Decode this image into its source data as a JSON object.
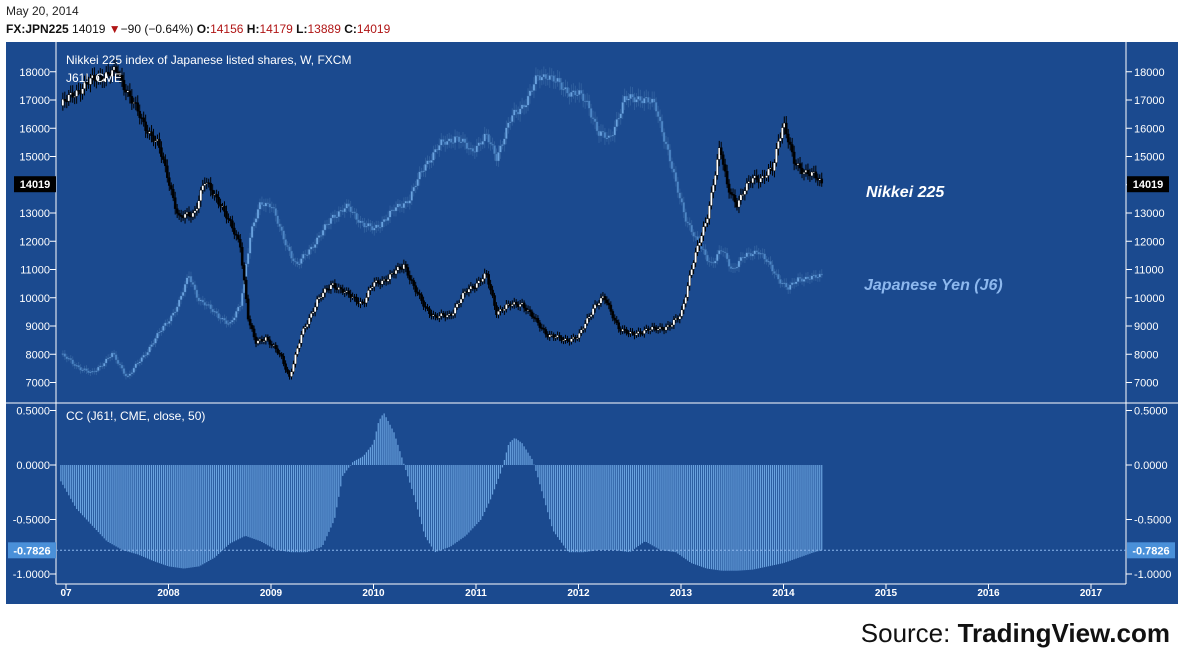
{
  "header": {
    "date": "May 20, 2014",
    "symbol": "FX:JPN225",
    "last": "14019",
    "change": "−90 (−0.64%)",
    "open_label": "O:",
    "open": "14156",
    "high_label": "H:",
    "high": "14179",
    "low_label": "L:",
    "low": "13889",
    "close_label": "C:",
    "close": "14019"
  },
  "main_pane": {
    "title": "Nikkei 225 index of Japanese listed shares, W, FXCM",
    "subtitle": "J61!, CME",
    "price_tag": "14019",
    "label_nikkei": "Nikkei 225",
    "label_yen": "Japanese Yen (J6)"
  },
  "indicator_pane": {
    "title": "CC (J61!, CME, close, 50)",
    "value_tag": "-0.7826"
  },
  "source": {
    "prefix": "Source: ",
    "brand": "TradingView.com"
  },
  "colors": {
    "background": "#1b4a8f",
    "nikkei_up": "#ffffff",
    "nikkei_down": "#000000",
    "yen": "#6aa3e0",
    "correlation": "#6aa3e0",
    "down_arrow": "#b01515"
  },
  "chart_data": [
    {
      "type": "candlestick",
      "title": "Nikkei 225 index of Japanese listed shares, W, FXCM",
      "x_ticks": [
        "07",
        "2008",
        "2009",
        "2010",
        "2011",
        "2012",
        "2013",
        "2014",
        "2015",
        "2016",
        "2017"
      ],
      "y_ticks": [
        7000,
        8000,
        9000,
        10000,
        11000,
        12000,
        13000,
        14000,
        15000,
        16000,
        17000,
        18000
      ],
      "ylim": [
        6600,
        18500
      ],
      "last_value": 14019,
      "series": [
        {
          "name": "Nikkei 225",
          "x": [
            2006.95,
            2007.1,
            2007.3,
            2007.5,
            2007.6,
            2007.75,
            2007.9,
            2008.0,
            2008.1,
            2008.25,
            2008.35,
            2008.5,
            2008.6,
            2008.7,
            2008.78,
            2008.85,
            2008.95,
            2009.1,
            2009.18,
            2009.3,
            2009.45,
            2009.6,
            2009.75,
            2009.9,
            2010.0,
            2010.15,
            2010.3,
            2010.4,
            2010.5,
            2010.6,
            2010.75,
            2010.9,
            2011.0,
            2011.1,
            2011.2,
            2011.3,
            2011.45,
            2011.6,
            2011.7,
            2011.85,
            2012.0,
            2012.15,
            2012.25,
            2012.4,
            2012.5,
            2012.6,
            2012.75,
            2012.9,
            2013.0,
            2013.1,
            2013.25,
            2013.38,
            2013.45,
            2013.55,
            2013.7,
            2013.8,
            2013.9,
            2013.95,
            2014.0,
            2014.1,
            2014.2,
            2014.3,
            2014.38
          ],
          "values": [
            16800,
            17300,
            17800,
            18000,
            17300,
            16200,
            15400,
            14200,
            12800,
            13000,
            14100,
            13400,
            12600,
            11900,
            9200,
            8400,
            8600,
            7900,
            7200,
            8700,
            9900,
            10500,
            10100,
            9800,
            10500,
            10700,
            11200,
            10300,
            9700,
            9300,
            9400,
            10200,
            10500,
            10800,
            9500,
            9700,
            9800,
            9100,
            8700,
            8500,
            8600,
            9700,
            10000,
            8900,
            8700,
            8800,
            8900,
            9000,
            9400,
            11000,
            12800,
            15300,
            14000,
            13300,
            14300,
            14200,
            14600,
            15600,
            16200,
            14800,
            14500,
            14300,
            14019
          ]
        },
        {
          "name": "Japanese Yen (J6)",
          "x": [
            2006.95,
            2007.1,
            2007.25,
            2007.45,
            2007.6,
            2007.75,
            2007.9,
            2008.0,
            2008.1,
            2008.2,
            2008.3,
            2008.45,
            2008.6,
            2008.7,
            2008.8,
            2008.9,
            2009.0,
            2009.1,
            2009.25,
            2009.35,
            2009.5,
            2009.6,
            2009.75,
            2009.9,
            2010.0,
            2010.2,
            2010.35,
            2010.5,
            2010.65,
            2010.8,
            2010.95,
            2011.1,
            2011.2,
            2011.35,
            2011.5,
            2011.6,
            2011.7,
            2011.85,
            2012.0,
            2012.1,
            2012.2,
            2012.3,
            2012.45,
            2012.6,
            2012.75,
            2012.85,
            2012.95,
            2013.05,
            2013.15,
            2013.3,
            2013.4,
            2013.5,
            2013.6,
            2013.75,
            2013.85,
            2013.95,
            2014.05,
            2014.15,
            2014.3,
            2014.38
          ],
          "values": [
            8000,
            7600,
            7300,
            8000,
            7200,
            7900,
            8700,
            9200,
            9800,
            10800,
            9900,
            9500,
            9000,
            9800,
            12200,
            13400,
            13300,
            12300,
            11100,
            11600,
            12300,
            12900,
            13200,
            12600,
            12400,
            13100,
            13500,
            14700,
            15400,
            15700,
            15200,
            15700,
            15000,
            16400,
            17000,
            17800,
            17900,
            17400,
            17200,
            16800,
            15800,
            15600,
            17000,
            17100,
            16800,
            15500,
            14000,
            12800,
            12000,
            11200,
            11700,
            11000,
            11400,
            11700,
            11200,
            10700,
            10300,
            10700,
            10700,
            10800
          ]
        }
      ]
    },
    {
      "type": "bar",
      "title": "CC (J61!, CME, close, 50)",
      "y_ticks": [
        0.5,
        0.0,
        -0.5,
        -1.0
      ],
      "ylim": [
        -1.1,
        0.55
      ],
      "last_value": -0.7826,
      "series": [
        {
          "name": "CC (J61!, CME, close, 50)",
          "x": [
            2006.95,
            2007.1,
            2007.25,
            2007.4,
            2007.55,
            2007.7,
            2007.85,
            2008.0,
            2008.15,
            2008.3,
            2008.45,
            2008.6,
            2008.75,
            2008.9,
            2009.05,
            2009.2,
            2009.35,
            2009.5,
            2009.62,
            2009.7,
            2009.8,
            2009.9,
            2010.0,
            2010.05,
            2010.1,
            2010.2,
            2010.3,
            2010.4,
            2010.5,
            2010.6,
            2010.75,
            2010.9,
            2011.05,
            2011.15,
            2011.25,
            2011.32,
            2011.38,
            2011.45,
            2011.55,
            2011.6,
            2011.75,
            2011.9,
            2012.05,
            2012.2,
            2012.35,
            2012.5,
            2012.65,
            2012.8,
            2012.95,
            2013.1,
            2013.25,
            2013.4,
            2013.55,
            2013.7,
            2013.85,
            2014.0,
            2014.15,
            2014.3,
            2014.38
          ],
          "values": [
            -0.15,
            -0.4,
            -0.55,
            -0.7,
            -0.78,
            -0.82,
            -0.88,
            -0.93,
            -0.95,
            -0.93,
            -0.85,
            -0.72,
            -0.65,
            -0.7,
            -0.78,
            -0.8,
            -0.8,
            -0.75,
            -0.5,
            -0.1,
            0.03,
            0.08,
            0.2,
            0.4,
            0.48,
            0.3,
            0.0,
            -0.3,
            -0.65,
            -0.8,
            -0.75,
            -0.65,
            -0.5,
            -0.3,
            -0.05,
            0.2,
            0.25,
            0.2,
            0.05,
            -0.1,
            -0.6,
            -0.8,
            -0.8,
            -0.78,
            -0.78,
            -0.8,
            -0.7,
            -0.78,
            -0.8,
            -0.9,
            -0.95,
            -0.97,
            -0.97,
            -0.96,
            -0.93,
            -0.9,
            -0.85,
            -0.8,
            -0.78
          ]
        }
      ]
    }
  ]
}
